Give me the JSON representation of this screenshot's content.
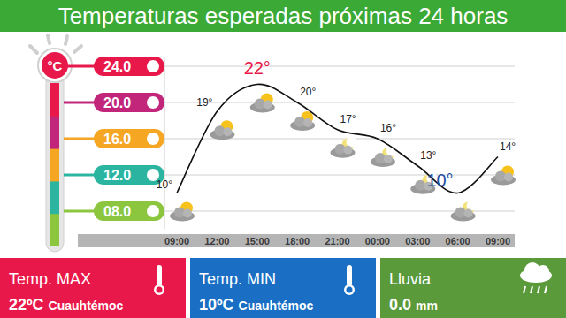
{
  "chart_data": {
    "type": "line",
    "title": "Temperaturas esperadas próximas 24 horas",
    "ylabel": "°C",
    "categories": [
      "09:00",
      "12:00",
      "15:00",
      "18:00",
      "21:00",
      "00:00",
      "03:00",
      "06:00",
      "09:00"
    ],
    "values": [
      10,
      19,
      22,
      20,
      17,
      16,
      13,
      10,
      14
    ],
    "value_labels": [
      "10°",
      "19°",
      "22°",
      "20°",
      "17°",
      "16°",
      "13°",
      "10°",
      "14°"
    ],
    "color": "#111111",
    "ylim": [
      6,
      25
    ],
    "yticks": [
      {
        "value": 8,
        "label": "08.0"
      },
      {
        "value": 12,
        "label": "12.0"
      },
      {
        "value": 16,
        "label": "16.0"
      },
      {
        "value": 20,
        "label": "20.0"
      },
      {
        "value": 24,
        "label": "24.0"
      }
    ],
    "grid": true,
    "data_labels": true
  },
  "summary": [
    {
      "label": "Temp. MAX",
      "value": "22ºC",
      "detail": "Cuauhtémoc"
    },
    {
      "label": "Temp. MIN",
      "value": "10ºC",
      "detail": "Cuauhtémoc"
    },
    {
      "label": "Lluvia",
      "value": "0.0",
      "detail": "mm"
    }
  ]
}
